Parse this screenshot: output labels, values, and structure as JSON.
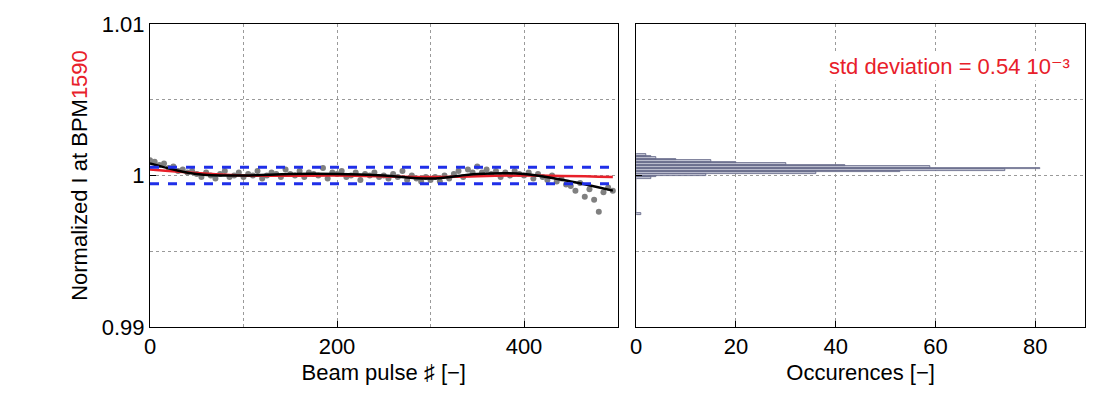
{
  "chart_data": [
    {
      "type": "scatter",
      "xlabel": "Beam pulse ♯ [−]",
      "ylabel_parts": [
        {
          "text": "Normalized I at BPM",
          "color": "#000000"
        },
        {
          "text": "1590",
          "color": "#e8202a"
        }
      ],
      "xlim": [
        0,
        500
      ],
      "xticks": [
        0,
        200,
        400
      ],
      "ylim": [
        0.99,
        1.01
      ],
      "yticks": [
        0.99,
        1,
        1.01
      ],
      "grid": true,
      "series": [
        {
          "type": "scatter",
          "marker": "circle",
          "color": "#808080",
          "x": [
            0,
            5,
            10,
            15,
            20,
            25,
            30,
            35,
            40,
            45,
            50,
            55,
            60,
            65,
            70,
            75,
            80,
            85,
            90,
            95,
            100,
            105,
            110,
            115,
            120,
            125,
            130,
            135,
            140,
            145,
            150,
            155,
            160,
            165,
            170,
            175,
            180,
            185,
            190,
            195,
            200,
            205,
            210,
            215,
            220,
            225,
            230,
            235,
            240,
            245,
            250,
            255,
            260,
            265,
            270,
            275,
            280,
            285,
            290,
            295,
            300,
            305,
            310,
            315,
            320,
            325,
            330,
            335,
            340,
            345,
            350,
            355,
            360,
            365,
            370,
            375,
            380,
            385,
            390,
            395,
            400,
            405,
            410,
            415,
            420,
            425,
            430,
            435,
            440,
            445,
            450,
            455,
            460,
            465,
            470,
            475,
            480,
            485,
            490,
            495
          ],
          "values": [
            1.001,
            1.0009,
            1.0007,
            1.0008,
            1.0005,
            1.0006,
            1.0003,
            1.0004,
            1.0002,
            1.0003,
            1.0001,
            0.9999,
            1.0002,
            1.0,
            0.9998,
            1.0001,
            1.0003,
            0.9999,
            1.0,
            1.0002,
            0.9999,
            1.0001,
            1.0,
            1.0003,
            0.9998,
            1.0,
            1.0002,
            1.0001,
            0.9999,
            1.0004,
            1.0001,
            1.0,
            1.0003,
            0.9999,
            1.0002,
            1.0001,
            1.0,
            1.0005,
            0.9998,
            1.0002,
            1.0001,
            1.0003,
            0.9999,
            1.0,
            1.0002,
            0.9997,
            1.0001,
            1.0,
            1.0002,
            0.9999,
            1.0,
            0.9998,
            1.0001,
            0.9999,
            1.0003,
            0.9997,
            1.0,
            0.9998,
            0.9996,
            0.9999,
            0.9997,
            0.9999,
            0.9996,
            1.0,
            0.9998,
            1.0001,
            1.0003,
            0.9999,
            1.0004,
            1.0002,
            1.0006,
            1.0002,
            1.0004,
            1.0001,
            1.0003,
            0.9999,
            1.0002,
            1.0,
            1.0003,
            1.0001,
            1.0,
            1.0002,
            0.9998,
            1.0001,
            0.9999,
            0.9997,
            1.0,
            0.9996,
            0.9998,
            0.9994,
            0.9993,
            0.999,
            0.9995,
            0.9986,
            0.9991,
            0.9984,
            0.9976,
            0.9989,
            0.9992,
            0.999
          ]
        },
        {
          "type": "line",
          "line_style": "solid",
          "color": "#e8202a",
          "x": [
            0,
            100,
            200,
            300,
            400,
            495
          ],
          "values": [
            1.0004,
            1.0,
            1.0,
            0.9999,
            1.0,
            0.9999
          ]
        },
        {
          "type": "line",
          "line_style": "solid",
          "color": "#000000",
          "x": [
            0,
            50,
            100,
            150,
            200,
            250,
            300,
            350,
            400,
            450,
            495
          ],
          "values": [
            1.0008,
            1.0001,
            1.0,
            1.0001,
            1.0001,
            1.0,
            0.9998,
            1.0001,
            1.0001,
            0.9996,
            0.999
          ]
        },
        {
          "type": "line",
          "line_style": "dashed",
          "color": "#1f2fe8",
          "x": [
            0,
            500
          ],
          "values": [
            1.00054,
            1.00054
          ]
        },
        {
          "type": "line",
          "line_style": "dashed",
          "color": "#1f2fe8",
          "x": [
            0,
            500
          ],
          "values": [
            0.99946,
            0.99946
          ]
        }
      ]
    },
    {
      "type": "histogram",
      "orientation": "horizontal",
      "xlabel": "Occurences [−]",
      "annotation": "std deviation = 0.54 10⁻³",
      "annotation_color": "#e8202a",
      "xlim": [
        0,
        90
      ],
      "xticks": [
        0,
        20,
        40,
        60,
        80
      ],
      "ylim": [
        0.99,
        1.01
      ],
      "tick_labels": "x",
      "grid": true,
      "color": "#c9ccdb",
      "bins": [
        0.9974,
        0.9975,
        0.9976,
        0.9977,
        0.9978,
        0.9979,
        0.998,
        0.9981,
        0.9982,
        0.9983,
        0.9984,
        0.9985,
        0.9986,
        0.9987,
        0.9988,
        0.9989,
        0.999,
        0.9991,
        0.9992,
        0.9993,
        0.9994,
        0.9995,
        0.9996,
        0.9997,
        0.9998,
        0.9999,
        1.0,
        1.0001,
        1.0002,
        1.0003,
        1.0004,
        1.0005,
        1.0006,
        1.0007,
        1.0008,
        1.0009,
        1.001,
        1.0011,
        1.0012,
        1.0013,
        1.0014
      ],
      "counts": [
        1,
        0,
        0,
        0,
        0,
        0,
        0,
        0,
        0,
        0,
        0,
        0,
        0,
        0,
        0,
        0,
        0,
        0,
        0,
        0,
        0,
        0,
        0,
        0,
        3,
        4,
        14,
        36,
        53,
        74,
        81,
        59,
        42,
        30,
        20,
        15,
        8,
        4,
        3,
        2
      ]
    }
  ]
}
